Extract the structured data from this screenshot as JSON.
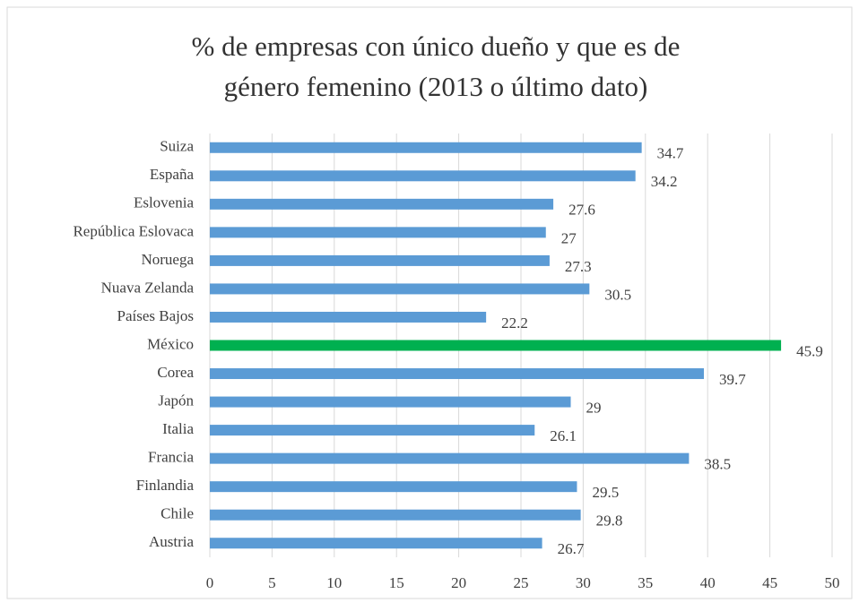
{
  "chart_data": {
    "type": "barh",
    "title": [
      "% de empresas con único dueño y que  es de",
      "género femenino (2013 o último dato)"
    ],
    "categories": [
      "Suiza",
      "España",
      "Eslovenia",
      "República Eslovaca",
      "Noruega",
      "Nuava Zelanda",
      "Países Bajos",
      "México",
      "Corea",
      "Japón",
      "Italia",
      "Francia",
      "Finlandia",
      "Chile",
      "Austria"
    ],
    "values": [
      34.7,
      34.2,
      27.6,
      27,
      27.3,
      30.5,
      22.2,
      45.9,
      39.7,
      29,
      26.1,
      38.5,
      29.5,
      29.8,
      26.7
    ],
    "colors": [
      "#5b9bd5",
      "#5b9bd5",
      "#5b9bd5",
      "#5b9bd5",
      "#5b9bd5",
      "#5b9bd5",
      "#5b9bd5",
      "#00b050",
      "#5b9bd5",
      "#5b9bd5",
      "#5b9bd5",
      "#5b9bd5",
      "#5b9bd5",
      "#5b9bd5",
      "#5b9bd5"
    ],
    "xlim": [
      0,
      50
    ],
    "xticks": [
      0,
      5,
      10,
      15,
      20,
      25,
      30,
      35,
      40,
      45,
      50
    ],
    "grid": true
  }
}
